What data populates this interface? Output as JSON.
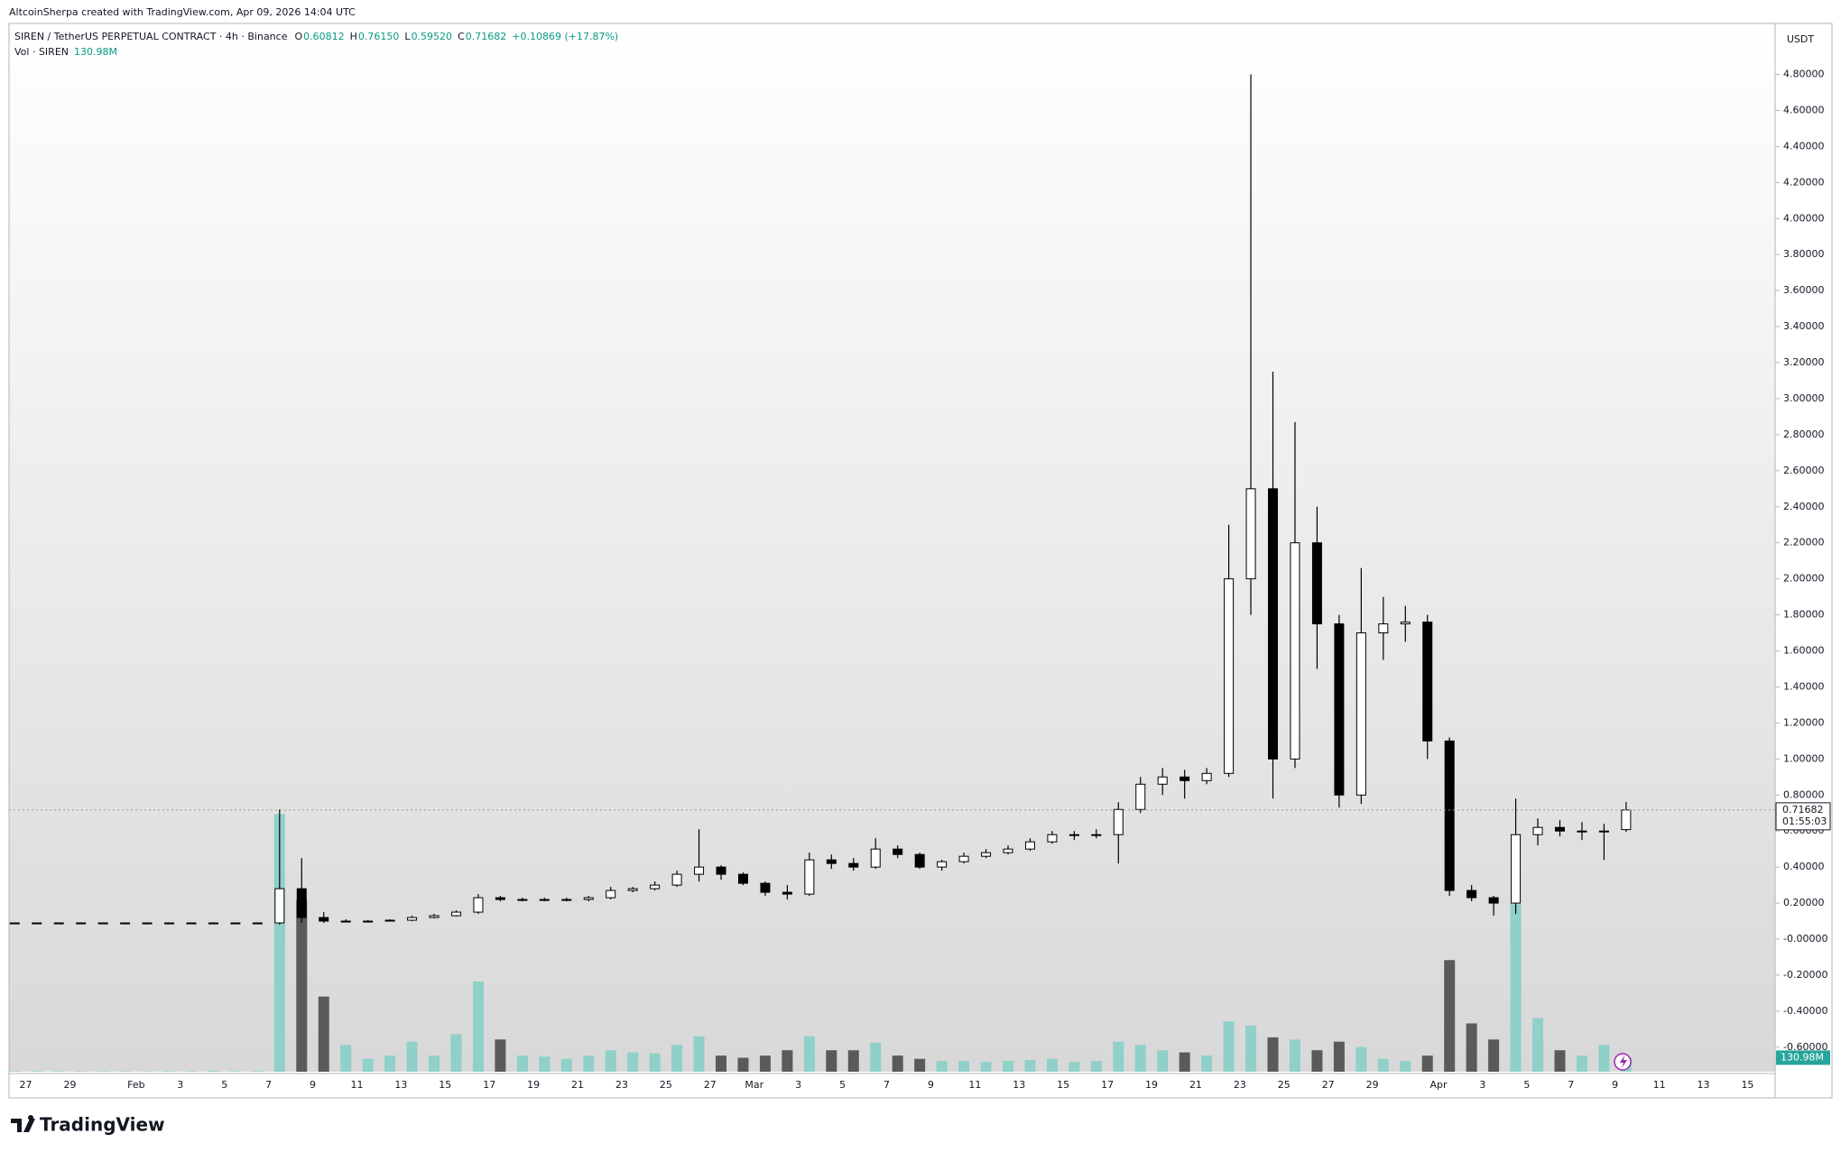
{
  "chart_data": {
    "type": "candlestick",
    "header": "AltcoinSherpa created with TradingView.com, Apr 09, 2026 14:04 UTC",
    "symbol": "SIREN / TetherUS PERPETUAL CONTRACT · 4h · Binance",
    "ohlc_legend": [
      {
        "key": "O",
        "value": "0.60812"
      },
      {
        "key": "H",
        "value": "0.76150"
      },
      {
        "key": "L",
        "value": "0.59520"
      },
      {
        "key": "C",
        "value": "0.71682"
      }
    ],
    "change": "+0.10869 (+17.87%)",
    "volume_legend": "Vol · SIREN",
    "volume_last": "130.98M",
    "currency": "USDT",
    "last_price": "0.71682",
    "countdown": "01:55:03",
    "brand": "TradingView",
    "up_color": "#ffffff",
    "down_color": "#000000",
    "volume_up_color": "#8fd0c9",
    "volume_down_color": "#5a5a5a",
    "grid": false,
    "categories": [
      null,
      "27",
      null,
      "29",
      null,
      null,
      "Feb",
      null,
      "3",
      null,
      "5",
      null,
      "7",
      null,
      "9",
      null,
      "11",
      null,
      "13",
      null,
      "15",
      null,
      "17",
      null,
      "19",
      null,
      "21",
      null,
      "23",
      null,
      "25",
      null,
      "27",
      null,
      "Mar",
      null,
      "3",
      null,
      "5",
      null,
      "7",
      null,
      "9",
      null,
      "11",
      null,
      "13",
      null,
      "15",
      null,
      "17",
      null,
      "19",
      null,
      "21",
      null,
      "23",
      null,
      "25",
      null,
      "27",
      null,
      "29",
      null,
      null,
      "Apr",
      null,
      "3",
      null,
      "5",
      null,
      "7",
      null,
      "9",
      null,
      "11",
      null,
      "13",
      null,
      "15",
      null
    ],
    "open": [
      0.09,
      0.09,
      0.09,
      0.09,
      0.09,
      0.09,
      0.09,
      0.09,
      0.09,
      0.09,
      0.09,
      0.09,
      0.09,
      0.28,
      0.12,
      0.1,
      0.1,
      0.1,
      0.105,
      0.12,
      0.13,
      0.15,
      0.23,
      0.22,
      0.22,
      0.22,
      0.22,
      0.23,
      0.27,
      0.28,
      0.3,
      0.36,
      0.4,
      0.36,
      0.31,
      0.26,
      0.25,
      0.44,
      0.42,
      0.4,
      0.5,
      0.47,
      0.4,
      0.43,
      0.46,
      0.48,
      0.5,
      0.54,
      0.58,
      0.58,
      0.58,
      0.72,
      0.86,
      0.9,
      0.88,
      0.92,
      2.0,
      2.5,
      1.0,
      2.2,
      1.75,
      0.8,
      1.7,
      1.75,
      1.76,
      1.1,
      0.27,
      0.23,
      0.2,
      0.58,
      0.62,
      0.6,
      0.6,
      0.60812,
      null,
      null,
      null,
      null,
      null,
      null,
      null
    ],
    "high": [
      0.092,
      0.092,
      0.092,
      0.092,
      0.092,
      0.092,
      0.092,
      0.092,
      0.092,
      0.092,
      0.092,
      0.092,
      0.72,
      0.45,
      0.15,
      0.11,
      0.105,
      0.11,
      0.13,
      0.14,
      0.16,
      0.25,
      0.24,
      0.23,
      0.23,
      0.23,
      0.24,
      0.29,
      0.29,
      0.32,
      0.38,
      0.61,
      0.41,
      0.37,
      0.32,
      0.3,
      0.48,
      0.47,
      0.45,
      0.56,
      0.52,
      0.48,
      0.44,
      0.48,
      0.5,
      0.52,
      0.56,
      0.6,
      0.6,
      0.61,
      0.76,
      0.9,
      0.95,
      0.94,
      0.95,
      2.3,
      4.8,
      3.15,
      2.87,
      2.4,
      1.8,
      2.06,
      1.9,
      1.85,
      1.8,
      1.12,
      0.3,
      0.24,
      0.78,
      0.67,
      0.66,
      0.65,
      0.64,
      0.7615,
      null,
      null,
      null,
      null,
      null,
      null,
      null
    ],
    "low": [
      0.088,
      0.088,
      0.088,
      0.088,
      0.088,
      0.088,
      0.088,
      0.088,
      0.088,
      0.088,
      0.088,
      0.088,
      0.08,
      0.09,
      0.09,
      0.095,
      0.095,
      0.1,
      0.1,
      0.115,
      0.125,
      0.14,
      0.21,
      0.21,
      0.21,
      0.21,
      0.21,
      0.22,
      0.26,
      0.27,
      0.29,
      0.32,
      0.33,
      0.3,
      0.24,
      0.22,
      0.24,
      0.39,
      0.38,
      0.39,
      0.45,
      0.39,
      0.38,
      0.42,
      0.45,
      0.47,
      0.49,
      0.53,
      0.55,
      0.56,
      0.42,
      0.7,
      0.8,
      0.78,
      0.86,
      0.9,
      1.8,
      0.78,
      0.95,
      1.5,
      0.73,
      0.75,
      1.55,
      1.65,
      1.0,
      0.24,
      0.21,
      0.13,
      0.14,
      0.52,
      0.57,
      0.55,
      0.44,
      0.5952,
      null,
      null,
      null,
      null,
      null,
      null,
      null
    ],
    "close": [
      0.09,
      0.09,
      0.09,
      0.09,
      0.09,
      0.09,
      0.09,
      0.09,
      0.09,
      0.09,
      0.09,
      0.09,
      0.28,
      0.12,
      0.1,
      0.1,
      0.1,
      0.105,
      0.12,
      0.13,
      0.15,
      0.23,
      0.22,
      0.22,
      0.22,
      0.22,
      0.23,
      0.27,
      0.28,
      0.3,
      0.36,
      0.4,
      0.36,
      0.31,
      0.26,
      0.25,
      0.44,
      0.42,
      0.4,
      0.5,
      0.47,
      0.4,
      0.43,
      0.46,
      0.48,
      0.5,
      0.54,
      0.58,
      0.58,
      0.58,
      0.72,
      0.86,
      0.9,
      0.88,
      0.92,
      2.0,
      2.5,
      1.0,
      2.2,
      1.75,
      0.8,
      1.7,
      1.75,
      1.76,
      1.1,
      0.27,
      0.23,
      0.2,
      0.58,
      0.62,
      0.6,
      0.6,
      0.6,
      0.71682,
      null,
      null,
      null,
      null,
      null,
      null,
      null
    ],
    "volume": [
      5,
      6,
      5,
      5,
      4,
      5,
      4,
      5,
      6,
      8,
      6,
      7,
      2400,
      1600,
      700,
      250,
      120,
      150,
      280,
      150,
      350,
      840,
      300,
      150,
      140,
      120,
      150,
      200,
      180,
      170,
      250,
      330,
      150,
      130,
      150,
      200,
      330,
      200,
      200,
      270,
      150,
      120,
      100,
      100,
      90,
      100,
      110,
      120,
      90,
      100,
      280,
      250,
      200,
      180,
      150,
      470,
      430,
      320,
      300,
      200,
      280,
      230,
      120,
      100,
      150,
      1040,
      450,
      300,
      1560,
      500,
      200,
      150,
      250,
      130.98,
      null,
      null,
      null,
      null,
      null,
      null,
      null
    ],
    "ylim": [
      -0.736,
      5.083
    ],
    "yticks": [
      {
        "value": -0.6,
        "label": "-0.60000"
      },
      {
        "value": -0.4,
        "label": "-0.40000"
      },
      {
        "value": -0.2,
        "label": "-0.20000"
      },
      {
        "value": 0,
        "label": "-0.00000"
      },
      {
        "value": 0.2,
        "label": "0.20000"
      },
      {
        "value": 0.4,
        "label": "0.40000"
      },
      {
        "value": 0.6,
        "label": "0.60000"
      },
      {
        "value": 0.8,
        "label": "0.80000"
      },
      {
        "value": 1,
        "label": "1.00000"
      },
      {
        "value": 1.2,
        "label": "1.20000"
      },
      {
        "value": 1.4,
        "label": "1.40000"
      },
      {
        "value": 1.6,
        "label": "1.60000"
      },
      {
        "value": 1.8,
        "label": "1.80000"
      },
      {
        "value": 2,
        "label": "2.00000"
      },
      {
        "value": 2.2,
        "label": "2.20000"
      },
      {
        "value": 2.4,
        "label": "2.40000"
      },
      {
        "value": 2.6,
        "label": "2.60000"
      },
      {
        "value": 2.8,
        "label": "2.80000"
      },
      {
        "value": 3,
        "label": "3.00000"
      },
      {
        "value": 3.2,
        "label": "3.20000"
      },
      {
        "value": 3.4,
        "label": "3.40000"
      },
      {
        "value": 3.6,
        "label": "3.60000"
      },
      {
        "value": 3.8,
        "label": "3.80000"
      },
      {
        "value": 4,
        "label": "4.00000"
      },
      {
        "value": 4.2,
        "label": "4.20000"
      },
      {
        "value": 4.4,
        "label": "4.40000"
      },
      {
        "value": 4.6,
        "label": "4.60000"
      },
      {
        "value": 4.8,
        "label": "4.80000"
      }
    ]
  }
}
